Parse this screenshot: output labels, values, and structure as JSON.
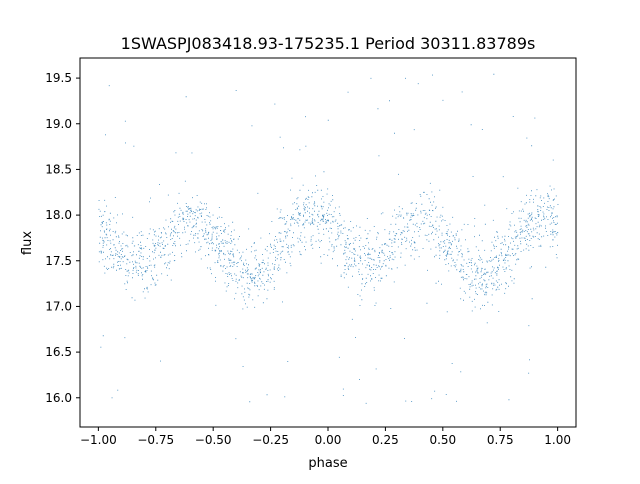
{
  "chart_data": {
    "type": "scatter",
    "title": "1SWASPJ083418.93-175235.1 Period 30311.83789s",
    "xlabel": "phase",
    "ylabel": "flux",
    "xlim": [
      -1.08,
      1.08
    ],
    "ylim": [
      15.68,
      19.72
    ],
    "xticks": [
      -1.0,
      -0.75,
      -0.5,
      -0.25,
      0.0,
      0.25,
      0.5,
      0.75,
      1.0
    ],
    "xtick_labels": [
      "−1.00",
      "−0.75",
      "−0.50",
      "−0.25",
      "0.00",
      "0.25",
      "0.50",
      "0.75",
      "1.00"
    ],
    "yticks": [
      16.0,
      16.5,
      17.0,
      17.5,
      18.0,
      18.5,
      19.0,
      19.5
    ],
    "ytick_labels": [
      "16.0",
      "16.5",
      "17.0",
      "17.5",
      "18.0",
      "18.5",
      "19.0",
      "19.5"
    ],
    "grid": false,
    "marker_color": "#1f77b4",
    "series": [
      {
        "values_note": "",
        "envelope": {
          "phase": [
            -1.0,
            -0.95,
            -0.9,
            -0.85,
            -0.8,
            -0.75,
            -0.7,
            -0.65,
            -0.6,
            -0.55,
            -0.5,
            -0.45,
            -0.4,
            -0.35,
            -0.3,
            -0.25,
            -0.2,
            -0.15,
            -0.1,
            -0.05,
            0.0,
            0.05,
            0.1,
            0.15,
            0.2,
            0.25,
            0.3,
            0.35,
            0.4,
            0.45,
            0.5,
            0.55,
            0.6,
            0.65,
            0.7,
            0.75,
            0.8,
            0.85,
            0.9,
            0.95,
            1.0
          ],
          "flux_center": [
            17.85,
            17.72,
            17.58,
            17.5,
            17.48,
            17.58,
            17.72,
            17.88,
            17.95,
            17.9,
            17.75,
            17.58,
            17.42,
            17.32,
            17.35,
            17.5,
            17.7,
            17.88,
            18.0,
            18.02,
            17.92,
            17.75,
            17.6,
            17.5,
            17.48,
            17.6,
            17.75,
            17.88,
            17.95,
            17.92,
            17.78,
            17.6,
            17.42,
            17.32,
            17.35,
            17.5,
            17.7,
            17.85,
            17.95,
            18.0,
            17.92
          ]
        }
      }
    ]
  }
}
